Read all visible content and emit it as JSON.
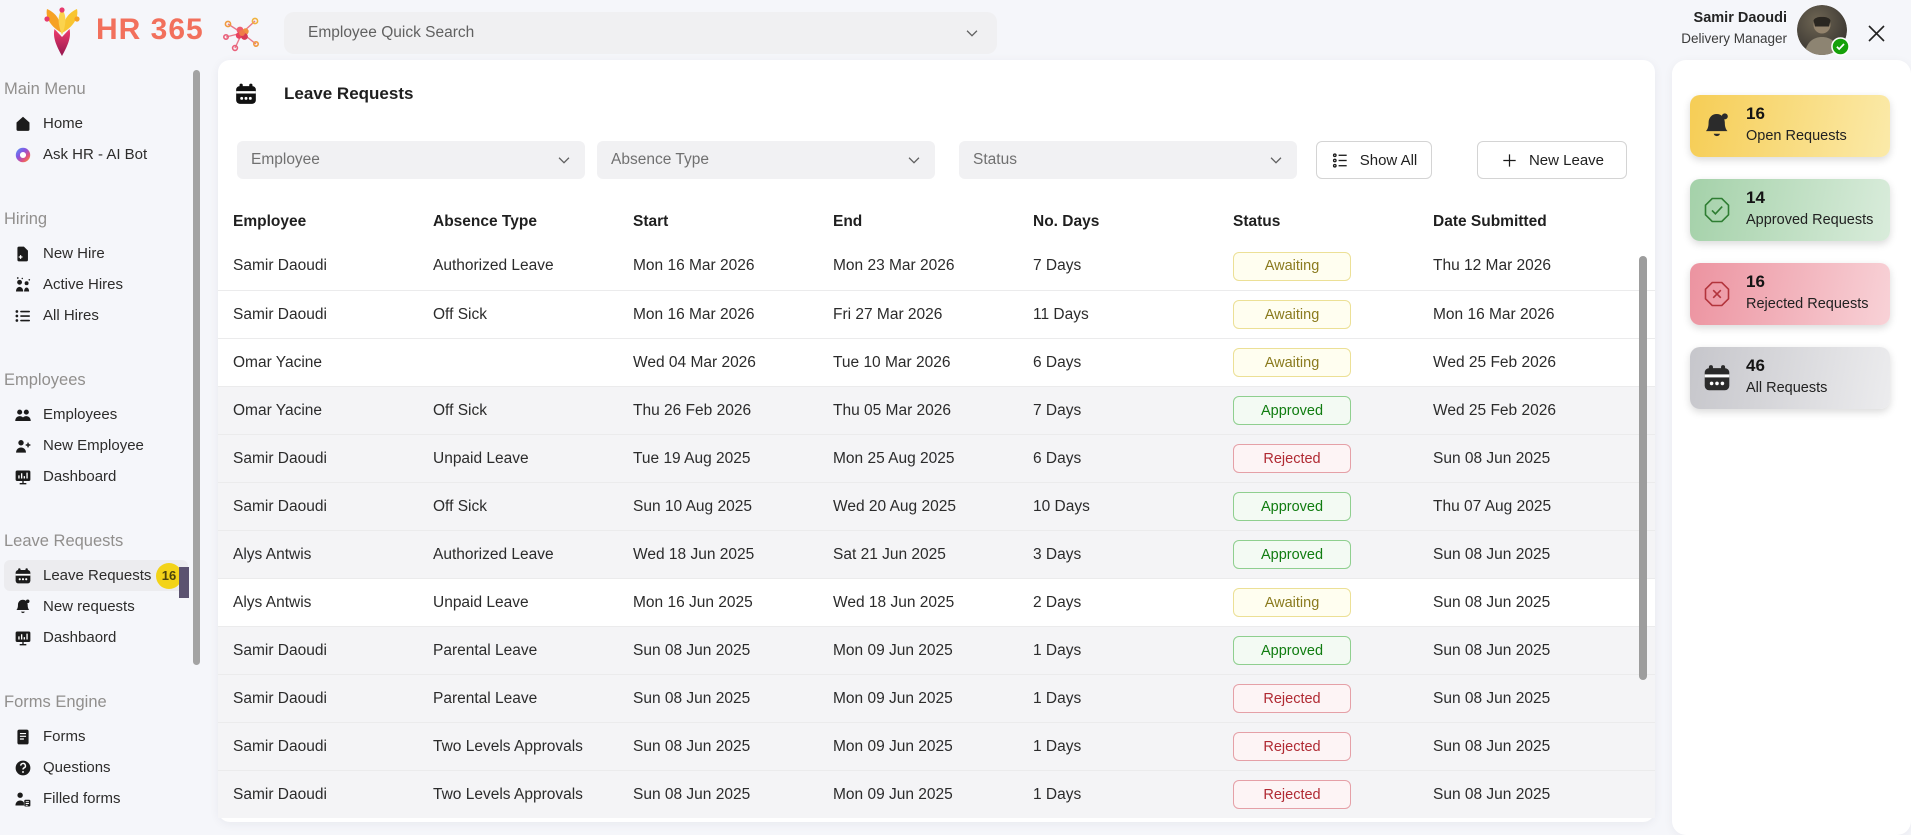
{
  "brand": {
    "title": "HR 365"
  },
  "topbar": {
    "search_placeholder": "Employee Quick Search",
    "user_name": "Samir Daoudi",
    "user_role": "Delivery Manager"
  },
  "sidebar": {
    "sections": [
      {
        "label": "Main Menu",
        "items": [
          {
            "icon": "home",
            "label": "Home"
          },
          {
            "icon": "copilot",
            "label": "Ask HR - AI Bot"
          }
        ]
      },
      {
        "label": "Hiring",
        "items": [
          {
            "icon": "new-hire",
            "label": "New Hire"
          },
          {
            "icon": "active-hires",
            "label": "Active Hires"
          },
          {
            "icon": "all-hires",
            "label": "All Hires"
          }
        ]
      },
      {
        "label": "Employees",
        "items": [
          {
            "icon": "employees",
            "label": "Employees"
          },
          {
            "icon": "new-employee",
            "label": "New Employee"
          },
          {
            "icon": "dashboard",
            "label": "Dashboard"
          }
        ]
      },
      {
        "label": "Leave Requests",
        "items": [
          {
            "icon": "calendar",
            "label": "Leave Requests",
            "active": true,
            "badge": "16"
          },
          {
            "icon": "bell",
            "label": "New requests"
          },
          {
            "icon": "dashboard",
            "label": "Dashbaord"
          }
        ]
      },
      {
        "label": "Forms Engine",
        "items": [
          {
            "icon": "forms",
            "label": "Forms"
          },
          {
            "icon": "questions",
            "label": "Questions"
          },
          {
            "icon": "filled-forms",
            "label": "Filled forms"
          }
        ]
      }
    ]
  },
  "main": {
    "title": "Leave Requests",
    "filters": [
      {
        "placeholder": "Employee"
      },
      {
        "placeholder": "Absence Type"
      },
      {
        "placeholder": "Status"
      }
    ],
    "show_all_label": "Show All",
    "new_leave_label": "New Leave",
    "table": {
      "columns": [
        "Employee",
        "Absence Type",
        "Start",
        "End",
        "No. Days",
        "Status",
        "Date Submitted"
      ],
      "rows": [
        {
          "employee": "Samir Daoudi",
          "absence_type": "Authorized Leave",
          "start": "Mon 16 Mar 2026",
          "end": "Mon 23 Mar 2026",
          "days": "7 Days",
          "status": "Awaiting",
          "submitted": "Thu 12 Mar 2026",
          "shaded": false
        },
        {
          "employee": "Samir Daoudi",
          "absence_type": "Off Sick",
          "start": "Mon 16 Mar 2026",
          "end": "Fri 27 Mar 2026",
          "days": "11 Days",
          "status": "Awaiting",
          "submitted": "Mon 16 Mar 2026",
          "shaded": false
        },
        {
          "employee": "Omar Yacine",
          "absence_type": "",
          "start": "Wed 04 Mar 2026",
          "end": "Tue 10 Mar 2026",
          "days": "6 Days",
          "status": "Awaiting",
          "submitted": "Wed 25 Feb 2026",
          "shaded": false
        },
        {
          "employee": "Omar Yacine",
          "absence_type": "Off Sick",
          "start": "Thu 26 Feb 2026",
          "end": "Thu 05 Mar 2026",
          "days": "7 Days",
          "status": "Approved",
          "submitted": "Wed 25 Feb 2026",
          "shaded": true
        },
        {
          "employee": "Samir Daoudi",
          "absence_type": "Unpaid Leave",
          "start": "Tue 19 Aug 2025",
          "end": "Mon 25 Aug 2025",
          "days": "6 Days",
          "status": "Rejected",
          "submitted": "Sun 08 Jun 2025",
          "shaded": true
        },
        {
          "employee": "Samir Daoudi",
          "absence_type": "Off Sick",
          "start": "Sun 10 Aug 2025",
          "end": "Wed 20 Aug 2025",
          "days": "10 Days",
          "status": "Approved",
          "submitted": "Thu 07 Aug 2025",
          "shaded": true
        },
        {
          "employee": "Alys Antwis",
          "absence_type": "Authorized Leave",
          "start": "Wed 18 Jun 2025",
          "end": "Sat 21 Jun 2025",
          "days": "3 Days",
          "status": "Approved",
          "submitted": "Sun 08 Jun 2025",
          "shaded": true
        },
        {
          "employee": "Alys Antwis",
          "absence_type": "Unpaid Leave",
          "start": "Mon 16 Jun 2025",
          "end": "Wed 18 Jun 2025",
          "days": "2 Days",
          "status": "Awaiting",
          "submitted": "Sun 08 Jun 2025",
          "shaded": false
        },
        {
          "employee": "Samir Daoudi",
          "absence_type": "Parental Leave",
          "start": "Sun 08 Jun 2025",
          "end": "Mon 09 Jun 2025",
          "days": "1 Days",
          "status": "Approved",
          "submitted": "Sun 08 Jun 2025",
          "shaded": true
        },
        {
          "employee": "Samir Daoudi",
          "absence_type": "Parental Leave",
          "start": "Sun 08 Jun 2025",
          "end": "Mon 09 Jun 2025",
          "days": "1 Days",
          "status": "Rejected",
          "submitted": "Sun 08 Jun 2025",
          "shaded": true
        },
        {
          "employee": "Samir Daoudi",
          "absence_type": "Two Levels Approvals",
          "start": "Sun 08 Jun 2025",
          "end": "Mon 09 Jun 2025",
          "days": "1 Days",
          "status": "Rejected",
          "submitted": "Sun 08 Jun 2025",
          "shaded": true
        },
        {
          "employee": "Samir Daoudi",
          "absence_type": "Two Levels Approvals",
          "start": "Sun 08 Jun 2025",
          "end": "Mon 09 Jun 2025",
          "days": "1 Days",
          "status": "Rejected",
          "submitted": "Sun 08 Jun 2025",
          "shaded": true
        }
      ]
    }
  },
  "summary_cards": [
    {
      "count": "16",
      "label": "Open Requests",
      "icon": "bell",
      "theme": "yellow"
    },
    {
      "count": "14",
      "label": "Approved Requests",
      "icon": "check-octagon",
      "theme": "green"
    },
    {
      "count": "16",
      "label": "Rejected Requests",
      "icon": "x-octagon",
      "theme": "red"
    },
    {
      "count": "46",
      "label": "All Requests",
      "icon": "calendar",
      "theme": "gray"
    }
  ],
  "colors": {
    "brand_text": "#f2705c",
    "sidebar_badge": "#f3d318",
    "status_awaiting_text": "#8a7a1d",
    "status_approved_text": "#107c10",
    "status_rejected_text": "#b02a33",
    "card_yellow_start": "#f6cd55",
    "card_green_start": "#a4d1a9",
    "card_red_start": "#ec93a0",
    "card_gray_start": "#c6c6cb"
  }
}
